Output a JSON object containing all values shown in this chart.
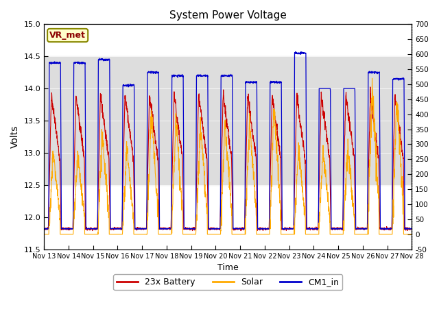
{
  "title": "System Power Voltage",
  "xlabel": "Time",
  "ylabel_left": "Volts",
  "ylim_left": [
    11.5,
    15.0
  ],
  "ylim_right": [
    -50,
    700
  ],
  "yticks_left": [
    11.5,
    12.0,
    12.5,
    13.0,
    13.5,
    14.0,
    14.5,
    15.0
  ],
  "yticks_right": [
    -50,
    0,
    50,
    100,
    150,
    200,
    250,
    300,
    350,
    400,
    450,
    500,
    550,
    600,
    650,
    700
  ],
  "color_battery": "#cc0000",
  "color_solar": "#ffaa00",
  "color_cm1": "#0000cc",
  "legend_labels": [
    "23x Battery",
    "Solar",
    "CM1_in"
  ],
  "shaded_band": [
    12.5,
    14.5
  ],
  "shaded_color": "#dddddd",
  "annotation_text": "VR_met",
  "figsize": [
    6.4,
    4.8
  ],
  "dpi": 100
}
